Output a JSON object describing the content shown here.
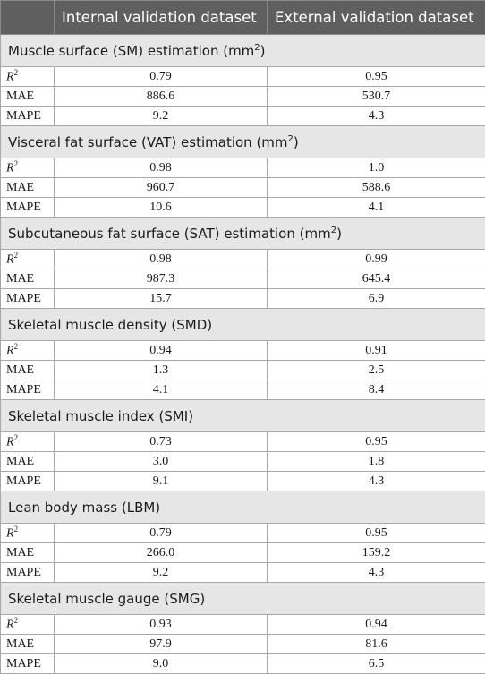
{
  "header": {
    "col0": "",
    "col1": "Internal validation dataset",
    "col2": "External validation dataset"
  },
  "sections": [
    {
      "title": "Muscle surface (SM) estimation (mm",
      "title_sup": "2",
      "title_end": ")",
      "rows": [
        {
          "label": "R",
          "label_sup": "2",
          "internal": "0.79",
          "external": "0.95"
        },
        {
          "label": "MAE",
          "internal": "886.6",
          "external": "530.7"
        },
        {
          "label": "MAPE",
          "internal": "9.2",
          "external": "4.3"
        }
      ]
    },
    {
      "title": "Visceral fat surface (VAT) estimation (mm",
      "title_sup": "2",
      "title_end": ")",
      "rows": [
        {
          "label": "R",
          "label_sup": "2",
          "internal": "0.98",
          "external": "1.0"
        },
        {
          "label": "MAE",
          "internal": "960.7",
          "external": "588.6"
        },
        {
          "label": "MAPE",
          "internal": "10.6",
          "external": "4.1"
        }
      ]
    },
    {
      "title": "Subcutaneous fat surface (SAT) estimation (mm",
      "title_sup": "2",
      "title_end": ")",
      "rows": [
        {
          "label": "R",
          "label_sup": "2",
          "internal": "0.98",
          "external": "0.99"
        },
        {
          "label": "MAE",
          "internal": "987.3",
          "external": "645.4"
        },
        {
          "label": "MAPE",
          "internal": "15.7",
          "external": "6.9"
        }
      ]
    },
    {
      "title": "Skeletal muscle density (SMD)",
      "rows": [
        {
          "label": "R",
          "label_sup": "2",
          "internal": "0.94",
          "external": "0.91"
        },
        {
          "label": "MAE",
          "internal": "1.3",
          "external": "2.5"
        },
        {
          "label": "MAPE",
          "internal": "4.1",
          "external": "8.4"
        }
      ]
    },
    {
      "title": "Skeletal muscle index (SMI)",
      "rows": [
        {
          "label": "R",
          "label_sup": "2",
          "internal": "0.73",
          "external": "0.95"
        },
        {
          "label": "MAE",
          "internal": "3.0",
          "external": "1.8"
        },
        {
          "label": "MAPE",
          "internal": "9.1",
          "external": "4.3"
        }
      ]
    },
    {
      "title": "Lean body mass (LBM)",
      "rows": [
        {
          "label": "R",
          "label_sup": "2",
          "internal": "0.79",
          "external": "0.95"
        },
        {
          "label": "MAE",
          "internal": "266.0",
          "external": "159.2"
        },
        {
          "label": "MAPE",
          "internal": "9.2",
          "external": "4.3"
        }
      ]
    },
    {
      "title": "Skeletal muscle gauge (SMG)",
      "rows": [
        {
          "label": "R",
          "label_sup": "2",
          "internal": "0.93",
          "external": "0.94"
        },
        {
          "label": "MAE",
          "internal": "97.9",
          "external": "81.6"
        },
        {
          "label": "MAPE",
          "internal": "9.0",
          "external": "6.5"
        }
      ]
    }
  ]
}
